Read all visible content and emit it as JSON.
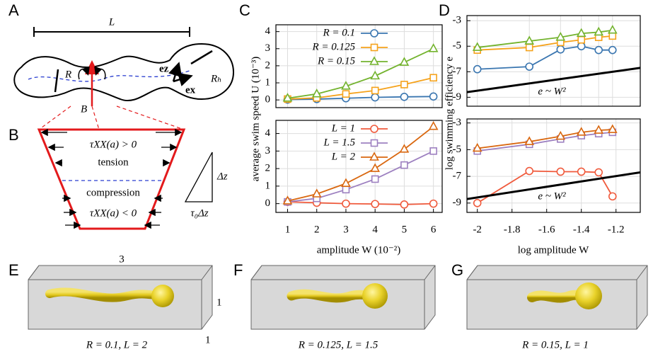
{
  "panel_labels": [
    "A",
    "B",
    "C",
    "D",
    "E",
    "F",
    "G"
  ],
  "panel_a": {
    "length": "L",
    "radius": "R",
    "bending": "B",
    "ez": "ez",
    "ex": "ex",
    "head_radius": "Rₕ"
  },
  "panel_b": {
    "upper_stress": "τXX(a) > 0",
    "tension": "tension",
    "compression": "compression",
    "lower_stress": "τXX(a) < 0",
    "height": "Δz",
    "base": "τ₀Δz"
  },
  "panel_efg": {
    "dims": [
      "3",
      "1",
      "1"
    ],
    "captions": [
      "R = 0.1, L = 2",
      "R = 0.125, L = 1.5",
      "R = 0.15, L = 1"
    ]
  },
  "chart_data": [
    {
      "type": "line",
      "ylabel": "average swim speed U (10⁻³)",
      "x": [
        1,
        2,
        3,
        4,
        5,
        6
      ],
      "xlim": [
        0.6,
        6.3
      ],
      "ylim": [
        -0.45,
        4.4
      ],
      "yticks": [
        0,
        1,
        2,
        3,
        4
      ],
      "grid": true,
      "legend": "upper left",
      "series": [
        {
          "name": "R = 0.1",
          "color": "#3a76b0",
          "marker": "circle",
          "values": [
            0.02,
            0.05,
            0.1,
            0.15,
            0.18,
            0.2
          ]
        },
        {
          "name": "R = 0.125",
          "color": "#f5a21b",
          "marker": "square",
          "values": [
            0.05,
            0.12,
            0.35,
            0.55,
            0.9,
            1.3
          ]
        },
        {
          "name": "R = 0.15",
          "color": "#73b32e",
          "marker": "triangle",
          "values": [
            0.1,
            0.35,
            0.8,
            1.4,
            2.2,
            3.0
          ]
        }
      ]
    },
    {
      "type": "line",
      "xlabel": "amplitude W (10⁻²)",
      "x": [
        1,
        2,
        3,
        4,
        5,
        6
      ],
      "xlim": [
        0.6,
        6.3
      ],
      "xticks": [
        1,
        2,
        3,
        4,
        5,
        6
      ],
      "ylim": [
        -0.5,
        4.75
      ],
      "yticks": [
        0,
        1,
        2,
        3,
        4
      ],
      "grid": true,
      "legend": "upper left",
      "series": [
        {
          "name": "L = 1",
          "color": "#f05a3c",
          "marker": "circle",
          "values": [
            0.1,
            0.05,
            0,
            -0.02,
            -0.05,
            0
          ]
        },
        {
          "name": "L = 1.5",
          "color": "#9d80c0",
          "marker": "square",
          "values": [
            0.1,
            0.3,
            0.8,
            1.4,
            2.2,
            3.0
          ]
        },
        {
          "name": "L = 2",
          "color": "#d9670f",
          "marker": "triangle",
          "values": [
            0.15,
            0.55,
            1.15,
            2.0,
            3.1,
            4.4
          ]
        }
      ]
    },
    {
      "type": "line",
      "ylabel": "log swimming efficiency e",
      "annotation": "e ~ W²",
      "x": [
        -2,
        -1.7,
        -1.52,
        -1.4,
        -1.3,
        -1.22
      ],
      "xlim": [
        -2.06,
        -1.06
      ],
      "ylim": [
        -9.7,
        -2.6
      ],
      "yticks": [
        -3,
        -5,
        -7,
        -9
      ],
      "grid": true,
      "series": [
        {
          "color": "#3a76b0",
          "marker": "circle",
          "values": [
            -6.8,
            -6.6,
            -5.25,
            -5.0,
            -5.3,
            -5.3
          ]
        },
        {
          "color": "#f5a21b",
          "marker": "square",
          "values": [
            -5.3,
            -5.1,
            -4.7,
            -4.5,
            -4.3,
            -4.2
          ]
        },
        {
          "color": "#73b32e",
          "marker": "triangle",
          "values": [
            -5.1,
            -4.6,
            -4.3,
            -4.0,
            -3.9,
            -3.75
          ]
        },
        {
          "color": "#000000",
          "marker": "none",
          "x": [
            -2.06,
            -1.06
          ],
          "values": [
            -8.6,
            -6.7
          ]
        }
      ]
    },
    {
      "type": "line",
      "xlabel": "log amplitude W",
      "annotation": "e ~ W²",
      "x": [
        -2,
        -1.7,
        -1.52,
        -1.4,
        -1.3,
        -1.22
      ],
      "xlim": [
        -2.06,
        -1.06
      ],
      "xticks": [
        -2,
        -1.8,
        -1.6,
        -1.4,
        -1.2
      ],
      "ylim": [
        -9.7,
        -2.7
      ],
      "yticks": [
        -3,
        -5,
        -7,
        -9
      ],
      "grid": true,
      "series": [
        {
          "color": "#f05a3c",
          "marker": "circle",
          "values": [
            -9.0,
            -6.6,
            -6.65,
            -6.65,
            -6.7,
            -8.5
          ]
        },
        {
          "color": "#9d80c0",
          "marker": "square",
          "values": [
            -5.1,
            -4.6,
            -4.2,
            -3.95,
            -3.8,
            -3.7
          ]
        },
        {
          "color": "#d9670f",
          "marker": "triangle",
          "values": [
            -4.9,
            -4.4,
            -4.0,
            -3.7,
            -3.55,
            -3.5
          ]
        },
        {
          "color": "#000000",
          "marker": "none",
          "x": [
            -2.06,
            -1.06
          ],
          "values": [
            -8.7,
            -6.7
          ]
        }
      ]
    }
  ]
}
